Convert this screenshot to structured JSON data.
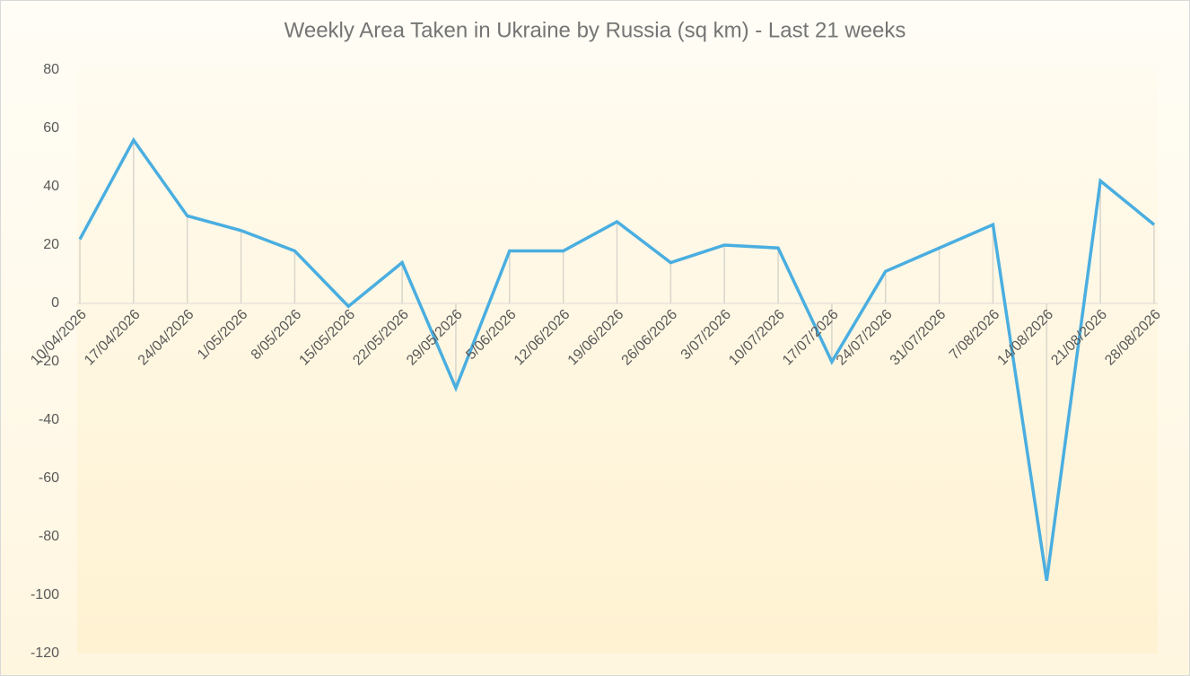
{
  "chart_data": {
    "type": "line",
    "title": "Weekly Area Taken in Ukraine by Russia (sq km) - Last 21 weeks",
    "categories": [
      "10/04/2026",
      "17/04/2026",
      "24/04/2026",
      "1/05/2026",
      "8/05/2026",
      "15/05/2026",
      "22/05/2026",
      "29/05/2026",
      "5/06/2026",
      "12/06/2026",
      "19/06/2026",
      "26/06/2026",
      "3/07/2026",
      "10/07/2026",
      "17/07/2026",
      "24/07/2026",
      "31/07/2026",
      "7/08/2026",
      "14/08/2026",
      "21/08/2026",
      "28/08/2026"
    ],
    "values": [
      22,
      56,
      30,
      25,
      18,
      -1,
      14,
      -29,
      18,
      18,
      28,
      14,
      20,
      19,
      -20,
      11,
      19,
      27,
      -95,
      42,
      27
    ],
    "color": "#4aaee0",
    "drop_lines": true,
    "ylim": [
      -120,
      80
    ],
    "yticks": [
      -120,
      -100,
      -80,
      -60,
      -40,
      -20,
      0,
      20,
      40,
      60,
      80
    ]
  }
}
